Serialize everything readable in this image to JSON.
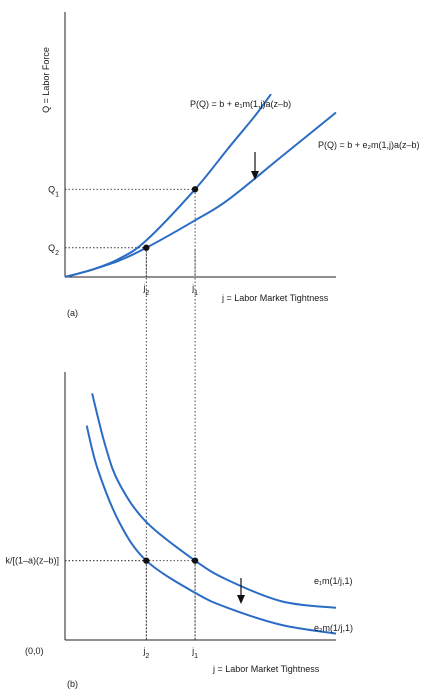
{
  "chart_data": [
    {
      "type": "line",
      "panel_label": "(a)",
      "ylabel": "Q = Labor Force",
      "xlabel": "j = Labor Market Tightness",
      "x_ticks": [
        {
          "name": "j2",
          "main": "j",
          "sub": "2",
          "value": 0.3
        },
        {
          "name": "j1",
          "main": "j",
          "sub": "1",
          "value": 0.48
        }
      ],
      "y_ticks": [
        {
          "name": "Q1",
          "main": "Q",
          "sub": "1",
          "value": 0.48
        },
        {
          "name": "Q2",
          "main": "Q",
          "sub": "2",
          "value": 0.16
        }
      ],
      "series": [
        {
          "name": "P(Q) = b + e₁m(1,j)a(z–b)",
          "curve": "upper",
          "x": [
            0,
            0.1,
            0.2,
            0.3,
            0.48,
            0.6,
            0.7,
            0.76
          ],
          "y": [
            0,
            0.04,
            0.1,
            0.2,
            0.48,
            0.7,
            0.88,
            1.0
          ]
        },
        {
          "name": "P(Q) = b + e₂m(1,j)a(z–b)",
          "curve": "lower",
          "x": [
            0,
            0.1,
            0.2,
            0.3,
            0.48,
            0.6,
            0.8,
            1.0
          ],
          "y": [
            0,
            0.04,
            0.09,
            0.16,
            0.31,
            0.42,
            0.66,
            0.9
          ]
        }
      ],
      "points": [
        {
          "name": "point-j1-Q1",
          "x": 0.48,
          "y": 0.48
        },
        {
          "name": "point-j2-Q2",
          "x": 0.3,
          "y": 0.16
        }
      ],
      "xlim": [
        0,
        1
      ],
      "ylim": [
        0,
        1.45
      ],
      "shift_arrow": "down"
    },
    {
      "type": "line",
      "panel_label": "(b)",
      "xlabel": "j = Labor Market Tightness",
      "origin_label": "(0,0)",
      "x_ticks": [
        {
          "name": "j2",
          "main": "j",
          "sub": "2",
          "value": 0.3
        },
        {
          "name": "j1",
          "main": "j",
          "sub": "1",
          "value": 0.48
        }
      ],
      "y_ticks": [
        {
          "name": "k-level",
          "main": "k/[(1–a)(z–b)]",
          "sub": "",
          "value": 0.37
        }
      ],
      "series": [
        {
          "name": "e₁m(1/j,1)",
          "curve": "upper",
          "x": [
            0.1,
            0.15,
            0.2,
            0.3,
            0.48,
            0.6,
            0.8,
            1.0
          ],
          "y": [
            1.15,
            0.9,
            0.73,
            0.55,
            0.37,
            0.28,
            0.18,
            0.15
          ]
        },
        {
          "name": "e₂m(1/j,1)",
          "curve": "lower",
          "x": [
            0.08,
            0.12,
            0.2,
            0.3,
            0.48,
            0.6,
            0.8,
            1.0
          ],
          "y": [
            1.0,
            0.8,
            0.55,
            0.37,
            0.22,
            0.15,
            0.07,
            0.03
          ]
        }
      ],
      "points": [
        {
          "name": "point-j2-k",
          "x": 0.3,
          "y": 0.37
        },
        {
          "name": "point-j1-k",
          "x": 0.48,
          "y": 0.37
        }
      ],
      "xlim": [
        0,
        1
      ],
      "ylim": [
        0,
        1.25
      ],
      "shift_arrow": "down"
    }
  ]
}
